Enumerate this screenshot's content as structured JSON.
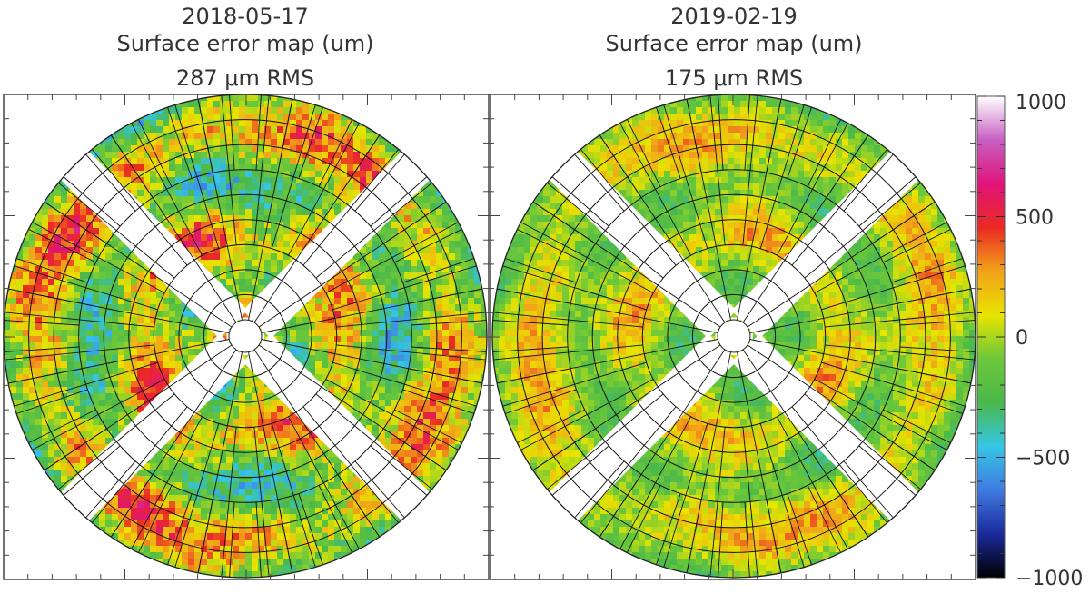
{
  "chart_data": [
    {
      "type": "heatmap",
      "panel": "left",
      "date": "2018-05-17",
      "title": "Surface error map (um)",
      "rms_label": "287 μm RMS",
      "rms_um": 287,
      "seed": 7,
      "slot_angles_deg": [
        45,
        135,
        225,
        315
      ]
    },
    {
      "type": "heatmap",
      "panel": "right",
      "date": "2019-02-19",
      "title": "Surface error map (um)",
      "rms_label": "175 μm RMS",
      "rms_um": 175,
      "seed": 23,
      "slot_angles_deg": [
        45,
        135,
        225,
        315
      ]
    }
  ],
  "colorbar": {
    "min": -1000,
    "max": 1000,
    "tick_values": [
      1000,
      500,
      0,
      -500,
      -1000
    ],
    "tick_labels": [
      "1000",
      "500",
      "0",
      "−500",
      "−1000"
    ],
    "colors": [
      "#000000",
      "#1a2a9c",
      "#3f7be0",
      "#35c6e6",
      "#4bb84a",
      "#6cc83a",
      "#e8e400",
      "#f2a21a",
      "#ea2a22",
      "#e0147a",
      "#c75fc2",
      "#ffffff"
    ]
  }
}
